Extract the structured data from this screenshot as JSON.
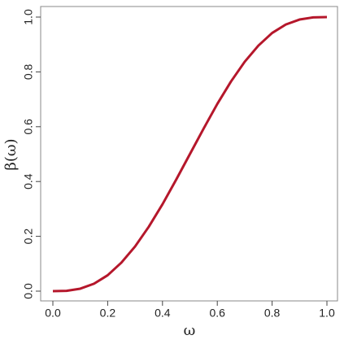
{
  "chart_data": {
    "type": "line",
    "x_label": "ω",
    "y_label": "β(ω)",
    "x": [
      0,
      0.05,
      0.1,
      0.15,
      0.2,
      0.25,
      0.3,
      0.35,
      0.4,
      0.45,
      0.5,
      0.55,
      0.6,
      0.65,
      0.7,
      0.75,
      0.8,
      0.85,
      0.9,
      0.95,
      1
    ],
    "values": [
      0,
      0.001,
      0.009,
      0.027,
      0.058,
      0.104,
      0.163,
      0.235,
      0.317,
      0.407,
      0.5,
      0.593,
      0.683,
      0.765,
      0.837,
      0.896,
      0.942,
      0.973,
      0.991,
      0.999,
      1
    ],
    "color": "#b5172b",
    "xlim": [
      0,
      1
    ],
    "ylim": [
      0,
      1
    ],
    "xticks": [
      {
        "value": 0,
        "label": "0.0"
      },
      0.2,
      0.4,
      0.6,
      0.8,
      {
        "value": 1,
        "label": "1.0"
      }
    ],
    "yticks": [
      {
        "value": 0,
        "label": "0.0"
      },
      0.2,
      0.4,
      0.6,
      0.8,
      {
        "value": 1,
        "label": "1.0"
      }
    ]
  }
}
